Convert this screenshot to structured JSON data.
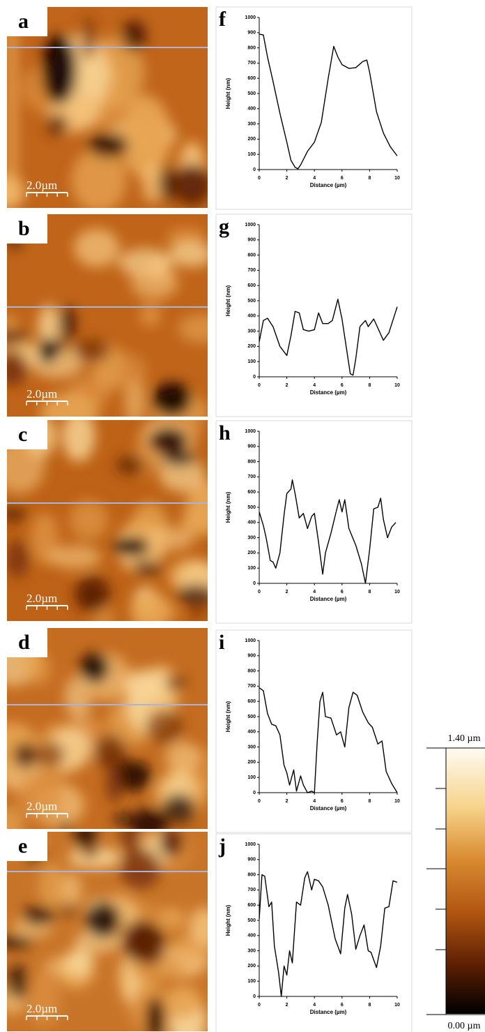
{
  "images": [
    {
      "label": "a",
      "scale_bar": "2.0µm"
    },
    {
      "label": "b",
      "scale_bar": "2.0µm"
    },
    {
      "label": "c",
      "scale_bar": "2.0µm"
    },
    {
      "label": "d",
      "scale_bar": "2.0µm"
    },
    {
      "label": "e",
      "scale_bar": "2.0µm"
    }
  ],
  "colorbar": {
    "max_label": "1.40 µm",
    "min_label": "0.00 µm"
  },
  "chart_data": [
    {
      "type": "line",
      "label": "f",
      "x_label": "Distance (µm)",
      "y_label": "Height (nm)",
      "color": "#000000",
      "xlim": [
        0,
        10
      ],
      "ylim": [
        0,
        1000
      ],
      "xticks": [
        0,
        2,
        4,
        6,
        8,
        10
      ],
      "yticks": [
        0,
        100,
        200,
        300,
        400,
        500,
        600,
        700,
        800,
        900,
        1000
      ],
      "x": [
        0,
        0.3,
        0.6,
        1,
        1.5,
        2,
        2.3,
        2.6,
        2.8,
        3,
        3.5,
        4,
        4.5,
        5,
        5.4,
        5.7,
        6,
        6.5,
        7,
        7.5,
        7.8,
        8,
        8.5,
        9,
        9.5,
        10
      ],
      "values": [
        890,
        885,
        740,
        580,
        370,
        180,
        60,
        15,
        5,
        30,
        120,
        180,
        310,
        600,
        810,
        740,
        690,
        665,
        670,
        710,
        720,
        640,
        380,
        240,
        150,
        90
      ]
    },
    {
      "type": "line",
      "label": "g",
      "x_label": "Distance (µm)",
      "y_label": "Height (nm)",
      "color": "#000000",
      "xlim": [
        0,
        10
      ],
      "ylim": [
        0,
        1000
      ],
      "xticks": [
        0,
        2,
        4,
        6,
        8,
        10
      ],
      "yticks": [
        0,
        100,
        200,
        300,
        400,
        500,
        600,
        700,
        800,
        900,
        1000
      ],
      "x": [
        0,
        0.3,
        0.6,
        1,
        1.5,
        2,
        2.3,
        2.6,
        2.9,
        3.2,
        3.6,
        4,
        4.3,
        4.6,
        5,
        5.3,
        5.7,
        6,
        6.3,
        6.6,
        6.8,
        7,
        7.3,
        7.7,
        7.9,
        8.3,
        8.6,
        9,
        9.4,
        10
      ],
      "values": [
        230,
        370,
        385,
        330,
        200,
        140,
        270,
        430,
        420,
        310,
        300,
        310,
        420,
        350,
        350,
        370,
        510,
        380,
        200,
        20,
        10,
        120,
        330,
        370,
        330,
        380,
        320,
        240,
        290,
        460
      ]
    },
    {
      "type": "line",
      "label": "h",
      "x_label": "Distance (µm)",
      "y_label": "Height (nm)",
      "color": "#000000",
      "xlim": [
        0,
        10
      ],
      "ylim": [
        0,
        1000
      ],
      "xticks": [
        0,
        2,
        4,
        6,
        8,
        10
      ],
      "yticks": [
        0,
        100,
        200,
        300,
        400,
        500,
        600,
        700,
        800,
        900,
        1000
      ],
      "x": [
        0,
        0.3,
        0.5,
        0.8,
        1,
        1.2,
        1.5,
        1.8,
        2,
        2.3,
        2.4,
        2.6,
        2.9,
        3.2,
        3.5,
        3.8,
        4,
        4.3,
        4.6,
        4.8,
        5.2,
        5.6,
        5.8,
        6,
        6.2,
        6.5,
        7,
        7.4,
        7.7,
        8,
        8.3,
        8.6,
        8.8,
        9,
        9.3,
        9.6,
        9.9
      ],
      "values": [
        470,
        380,
        300,
        150,
        140,
        100,
        200,
        450,
        590,
        620,
        680,
        590,
        430,
        460,
        360,
        440,
        460,
        270,
        60,
        200,
        330,
        480,
        550,
        470,
        550,
        360,
        250,
        130,
        0,
        220,
        490,
        500,
        560,
        420,
        300,
        370,
        400
      ]
    },
    {
      "type": "line",
      "label": "i",
      "x_label": "Distance (µm)",
      "y_label": "Height (nm)",
      "color": "#000000",
      "xlim": [
        0,
        10
      ],
      "ylim": [
        0,
        1000
      ],
      "xticks": [
        0,
        2,
        4,
        6,
        8,
        10
      ],
      "yticks": [
        0,
        100,
        200,
        300,
        400,
        500,
        600,
        700,
        800,
        900,
        1000
      ],
      "x": [
        0,
        0.3,
        0.6,
        0.9,
        1.2,
        1.5,
        1.8,
        2,
        2.2,
        2.5,
        2.7,
        3,
        3.2,
        3.5,
        3.8,
        4,
        4.2,
        4.4,
        4.6,
        4.8,
        5.2,
        5.6,
        5.9,
        6.2,
        6.5,
        6.8,
        7.1,
        7.5,
        7.9,
        8.2,
        8.6,
        8.9,
        9.2,
        9.6,
        10
      ],
      "values": [
        690,
        670,
        520,
        450,
        440,
        380,
        180,
        130,
        50,
        150,
        10,
        110,
        50,
        0,
        10,
        0,
        330,
        600,
        660,
        500,
        490,
        380,
        400,
        300,
        560,
        660,
        640,
        530,
        460,
        430,
        320,
        340,
        140,
        60,
        0
      ]
    },
    {
      "type": "line",
      "label": "j",
      "x_label": "Distance (µm)",
      "y_label": "Height (nm)",
      "color": "#000000",
      "xlim": [
        0,
        10
      ],
      "ylim": [
        0,
        1000
      ],
      "xticks": [
        0,
        2,
        4,
        6,
        8,
        10
      ],
      "yticks": [
        0,
        100,
        200,
        300,
        400,
        500,
        600,
        700,
        800,
        900,
        1000
      ],
      "x": [
        0,
        0.2,
        0.4,
        0.7,
        0.9,
        1.1,
        1.4,
        1.6,
        1.8,
        2,
        2.2,
        2.4,
        2.7,
        3,
        3.3,
        3.5,
        3.8,
        4,
        4.3,
        4.6,
        5,
        5.5,
        5.9,
        6.2,
        6.4,
        6.7,
        7,
        7.3,
        7.6,
        7.9,
        8.1,
        8.5,
        8.8,
        9.1,
        9.4,
        9.7,
        10
      ],
      "values": [
        510,
        800,
        790,
        590,
        620,
        330,
        160,
        0,
        200,
        140,
        300,
        220,
        620,
        600,
        780,
        820,
        700,
        770,
        760,
        720,
        600,
        380,
        280,
        580,
        670,
        540,
        310,
        400,
        470,
        300,
        290,
        190,
        330,
        580,
        590,
        760,
        750
      ]
    }
  ]
}
